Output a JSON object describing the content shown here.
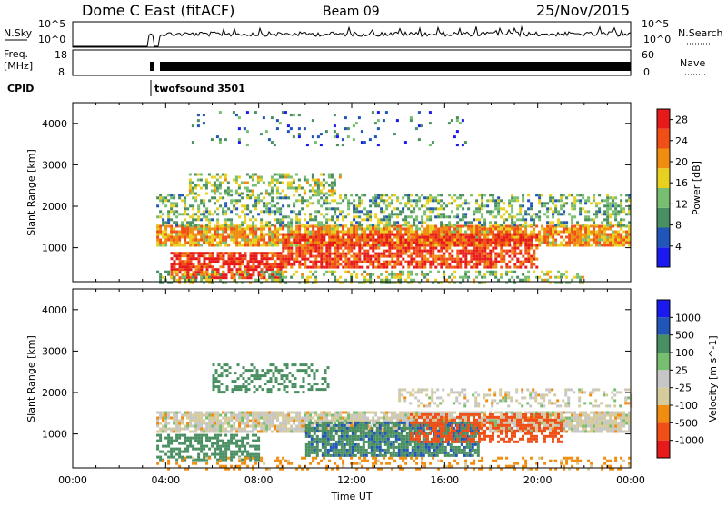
{
  "header": {
    "station": "Dome C East (fitACF)",
    "beam": "Beam 09",
    "date": "25/Nov/2015"
  },
  "summary_panels": {
    "nsky": {
      "label": "N.Sky",
      "ticks": [
        "10^5",
        "10^0"
      ],
      "right_ticks": [
        "10^5",
        "10^0"
      ],
      "right_label": "N.Search",
      "right_style": "dotted"
    },
    "freq": {
      "label_line1": "Freq.",
      "label_line2": "[MHz]",
      "ticks": [
        "18",
        "8"
      ],
      "right_ticks": [
        "60",
        "0"
      ],
      "right_label": "Nave",
      "right_style": "dotted"
    },
    "cpid": {
      "label": "CPID",
      "program": "twofsound 3501"
    }
  },
  "colors": {
    "power": [
      "#1a1af0",
      "#2255b8",
      "#4a8f62",
      "#78be70",
      "#e8d020",
      "#f08c10",
      "#f05018",
      "#e61a1a"
    ],
    "velocity": [
      "#e61a1a",
      "#f05018",
      "#f08c10",
      "#d6cb9a",
      "#c6c6c6",
      "#78be70",
      "#4a8f62",
      "#2255b8",
      "#1a1af0"
    ]
  },
  "chart_data": [
    {
      "type": "heatmap",
      "title": "Power",
      "xlabel": "",
      "ylabel": "Slant Range [km]",
      "x_ticks": [
        "00:00",
        "04:00",
        "08:00",
        "12:00",
        "16:00",
        "20:00",
        "00:00"
      ],
      "y_ticks": [
        "1000",
        "2000",
        "3000",
        "4000"
      ],
      "xlim_hours": [
        0,
        24
      ],
      "ylim_km": [
        180,
        4500
      ],
      "colorbar": {
        "label": "Power [dB]",
        "ticks": [
          "4",
          "8",
          "12",
          "16",
          "20",
          "24",
          "28"
        ],
        "range": [
          0,
          30
        ]
      },
      "regions": [
        {
          "t0": 3.6,
          "t1": 24.0,
          "r0": 1050,
          "r1": 1550,
          "value": 20,
          "density": 0.85
        },
        {
          "t0": 4.2,
          "t1": 9.0,
          "r0": 300,
          "r1": 900,
          "value": 27,
          "density": 0.8
        },
        {
          "t0": 9.0,
          "t1": 20.0,
          "r0": 550,
          "r1": 1350,
          "value": 26,
          "density": 0.75
        },
        {
          "t0": 3.6,
          "t1": 22.0,
          "r0": 180,
          "r1": 450,
          "value": 14,
          "density": 0.35
        },
        {
          "t0": 3.6,
          "t1": 24.0,
          "r0": 1550,
          "r1": 2300,
          "value": 12,
          "density": 0.45
        },
        {
          "t0": 5.0,
          "t1": 11.5,
          "r0": 2300,
          "r1": 2800,
          "value": 14,
          "density": 0.45
        },
        {
          "t0": 5.0,
          "t1": 17.0,
          "r0": 3500,
          "r1": 4300,
          "value": 8,
          "density": 0.08
        }
      ]
    },
    {
      "type": "heatmap",
      "title": "Velocity",
      "xlabel": "Time UT",
      "ylabel": "Slant Range [km]",
      "x_ticks": [
        "00:00",
        "04:00",
        "08:00",
        "12:00",
        "16:00",
        "20:00",
        "00:00"
      ],
      "y_ticks": [
        "1000",
        "2000",
        "3000",
        "4000"
      ],
      "xlim_hours": [
        0,
        24
      ],
      "ylim_km": [
        180,
        4500
      ],
      "colorbar": {
        "label": "Velocity [m s^-1]",
        "ticks": [
          "1000",
          "500",
          "100",
          "25",
          "-25",
          "-100",
          "-500",
          "-1000"
        ]
      },
      "regions": [
        {
          "t0": 3.6,
          "t1": 24.0,
          "r0": 1050,
          "r1": 1550,
          "value": 0,
          "density": 0.85
        },
        {
          "t0": 3.6,
          "t1": 8.0,
          "r0": 350,
          "r1": 1000,
          "value": 200,
          "density": 0.6
        },
        {
          "t0": 10.0,
          "t1": 17.5,
          "r0": 450,
          "r1": 1300,
          "value": 400,
          "density": 0.8
        },
        {
          "t0": 14.5,
          "t1": 21.0,
          "r0": 800,
          "r1": 1500,
          "value": -200,
          "density": 0.5
        },
        {
          "t0": 3.6,
          "t1": 24.0,
          "r0": 180,
          "r1": 450,
          "value": -50,
          "density": 0.3
        },
        {
          "t0": 6.0,
          "t1": 11.0,
          "r0": 2000,
          "r1": 2700,
          "value": 200,
          "density": 0.35
        },
        {
          "t0": 14.0,
          "t1": 24.0,
          "r0": 1700,
          "r1": 2100,
          "value": 0,
          "density": 0.35
        }
      ]
    }
  ]
}
